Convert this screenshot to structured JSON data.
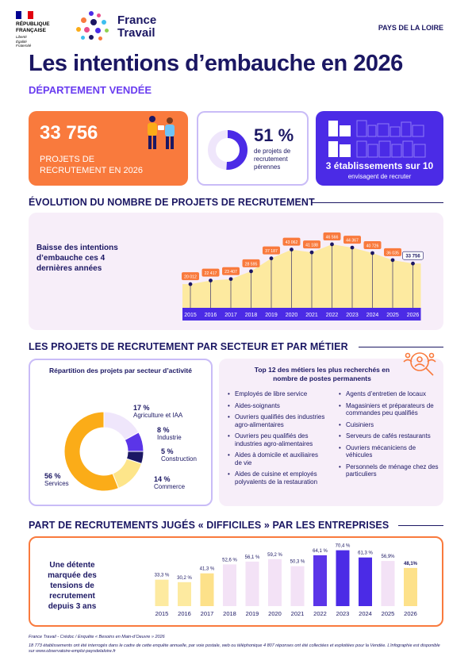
{
  "header": {
    "republique_lines": [
      "RÉPUBLIQUE",
      "FRANÇAISE"
    ],
    "motto_lines": [
      "Liberté",
      "Égalité",
      "Fraternité"
    ],
    "brand_lines": [
      "France",
      "Travail"
    ],
    "region": "PAYS DE LA LOIRE"
  },
  "title": "Les intentions d’embauche en 2026",
  "department": "DÉPARTEMENT VENDÉE",
  "kpis": {
    "projects_value": "33 756",
    "projects_label": "PROJETS DE RECRUTEMENT EN 2026",
    "perennial_value": "51 %",
    "perennial_fraction": 0.51,
    "perennial_label": "de projets de recrutement pérennes",
    "establishments_value": "3 établissements sur 10",
    "establishments_label": "envisagent de recruter"
  },
  "colors": {
    "navy": "#1b1763",
    "violet": "#4b2be6",
    "orange": "#f97a3d",
    "lavender": "#f7eef9",
    "yellow": "#fdeaa0"
  },
  "evolution": {
    "section_title": "ÉVOLUTION DU NOMBRE DE PROJETS DE RECRUTEMENT",
    "text": "Baisse des intentions d’embauche ces 4 dernières années"
  },
  "sectors": {
    "section_title": "LES PROJETS DE RECRUTEMENT PAR SECTEUR ET PAR MÉTIER",
    "chart_title": "Répartition des projets par secteur d’activité",
    "metiers_title": "Top 12 des métiers les plus recherchés en nombre de postes permanents",
    "metiers_left": [
      "Employés de libre service",
      "Aides-soignants",
      "Ouvriers qualifiés des industries agro-alimentaires",
      "Ouvriers peu qualifiés des industries agro-alimentaires",
      "Aides à domicile et auxiliaires de vie",
      "Aides de cuisine et employés polyvalents de la restauration"
    ],
    "metiers_right": [
      "Agents d’entretien de locaux",
      "Magasiniers et préparateurs de commandes peu qualifiés",
      "Cuisiniers",
      "Serveurs de cafés restaurants",
      "Ouvriers mécaniciens de véhicules",
      "Personnels de ménage chez des particuliers"
    ]
  },
  "difficult": {
    "section_title": "PART DE RECRUTEMENTS JUGÉS « DIFFICILES » PAR LES ENTREPRISES",
    "text": "Une détente marquée des tensions de recrutement depuis 3 ans"
  },
  "footer": {
    "source": "France Travail - Crédoc / Enquête « Besoins en Main-d’Oeuvre » 2026",
    "note": "18 773 établissements ont été interrogés dans le cadre de cette enquête annuelle, par voie postale, web ou téléphonique 4 807 réponses ont été collectées et exploitées pour la Vendée. L’infographie est disponible sur www.observatoire-emploi-paysdelaloire.fr"
  },
  "chart_data": [
    {
      "type": "area",
      "x": [
        "2015",
        "2016",
        "2017",
        "2018",
        "2019",
        "2020",
        "2021",
        "2022",
        "2023",
        "2024",
        "2025",
        "2026"
      ],
      "values": [
        20012,
        22417,
        23407,
        28595,
        37187,
        43062,
        41188,
        46566,
        44367,
        40726,
        36035,
        33756
      ],
      "labels": [
        "20 012",
        "22 417",
        "23 407",
        "28 595",
        "37 187",
        "43 062",
        "41 188",
        "46 566",
        "44 367",
        "40 726",
        "36 035",
        "33 756"
      ],
      "highlight_last": true
    },
    {
      "type": "pie",
      "slices": [
        {
          "label": "Agriculture et IAA",
          "value": 17,
          "text": "17 %",
          "color": "#efe6fb"
        },
        {
          "label": "Industrie",
          "value": 8,
          "text": "8 %",
          "color": "#5b35e8"
        },
        {
          "label": "Construction",
          "value": 5,
          "text": "5 %",
          "color": "#1b1763"
        },
        {
          "label": "Commerce",
          "value": 14,
          "text": "14 %",
          "color": "#fde58a"
        },
        {
          "label": "Services",
          "value": 56,
          "text": "56 %",
          "color": "#fbac18"
        }
      ]
    },
    {
      "type": "bar",
      "categories": [
        "2015",
        "2016",
        "2017",
        "2018",
        "2019",
        "2020",
        "2021",
        "2022",
        "2023",
        "2024",
        "2025",
        "2026"
      ],
      "values": [
        33.3,
        30.2,
        41.3,
        52.6,
        56.1,
        59.2,
        50.3,
        64.1,
        70.4,
        61.3,
        56.9,
        48.1
      ],
      "labels": [
        "33,3 %",
        "30,2 %",
        "41,3 %",
        "52,6 %",
        "56,1 %",
        "59,2 %",
        "50,3 %",
        "64,1 %",
        "70,4 %",
        "61,3 %",
        "56,9%",
        "48,1%"
      ],
      "colors": [
        "#fdeaa0",
        "#fdeaa0",
        "#fde18a",
        "#f3e2f6",
        "#f3e2f6",
        "#f3e2f6",
        "#f3e2f6",
        "#5b35e8",
        "#4b2be6",
        "#4b2be6",
        "#f3e2f6",
        "#fde18a"
      ],
      "ylim": [
        0,
        80
      ]
    }
  ]
}
